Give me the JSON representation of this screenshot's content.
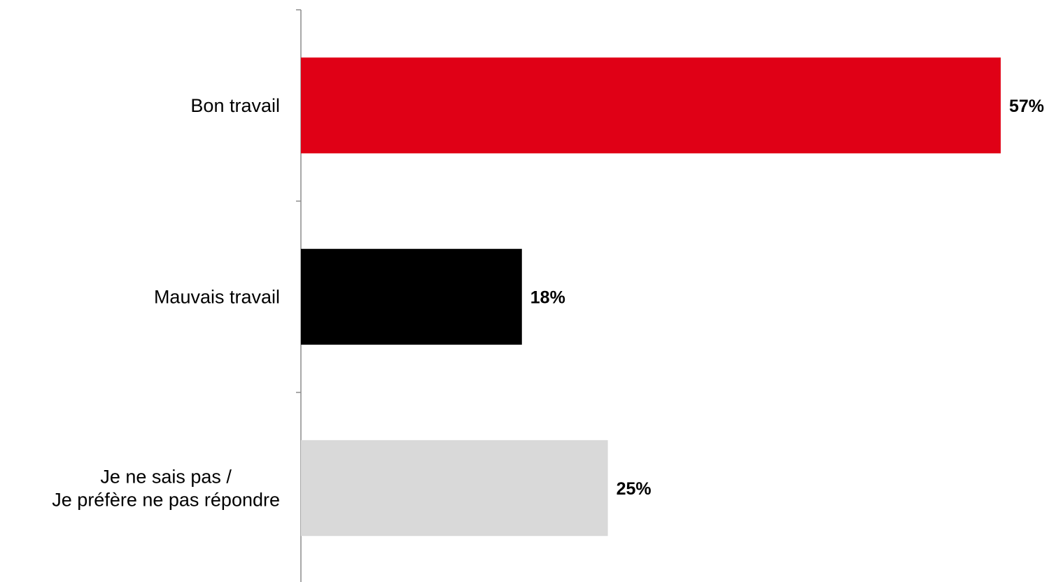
{
  "chart_data": {
    "type": "bar",
    "orientation": "horizontal",
    "categories": [
      [
        "Bon travail"
      ],
      [
        "Mauvais travail"
      ],
      [
        "Je ne sais pas /",
        "Je préfère ne pas répondre"
      ]
    ],
    "values": [
      57,
      18,
      25
    ],
    "value_labels": [
      "57%",
      "18%",
      "25%"
    ],
    "colors": [
      "#e00016",
      "#000000",
      "#d9d9d9"
    ],
    "xlim": [
      0,
      57
    ],
    "grid": false,
    "legend": "none"
  }
}
